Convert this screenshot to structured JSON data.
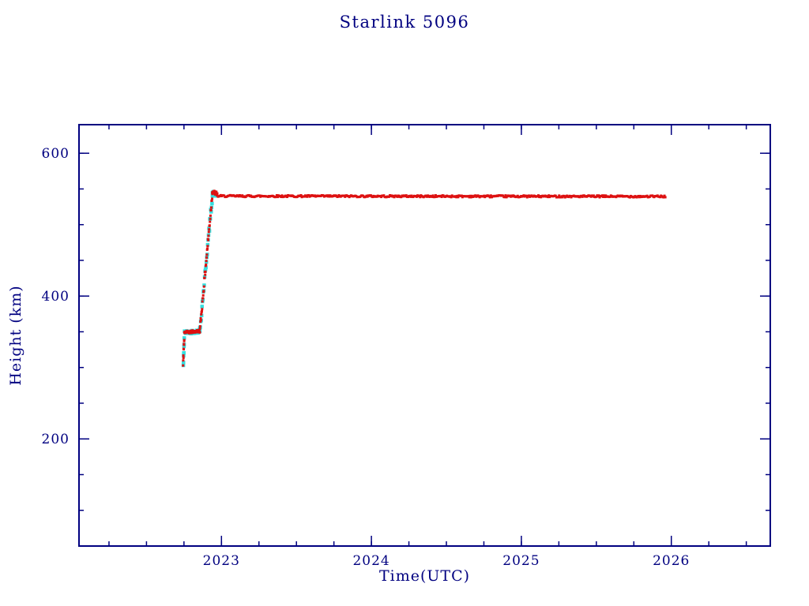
{
  "chart_data": {
    "type": "scatter",
    "title": "Starlink 5096",
    "xlabel": "Time(UTC)",
    "ylabel": "Height (km)",
    "xlim": [
      2022.05,
      2026.66
    ],
    "ylim": [
      50,
      640
    ],
    "x_major_ticks": [
      2023,
      2024,
      2025,
      2026
    ],
    "x_minor_step": 0.25,
    "y_major_ticks": [
      200,
      400,
      600
    ],
    "y_minor_step": 50,
    "grid": false,
    "legend": "none",
    "axis_color": "#000080",
    "text_color": "#000080",
    "background": "#ffffff",
    "series": [
      {
        "name": "height-track-cyan",
        "color": "#35dede",
        "marker_size": 4.5,
        "segments": [
          {
            "x0": 2022.746,
            "x1": 2022.752,
            "y0": 302,
            "y1": 340,
            "n": 8,
            "jitter": 5
          },
          {
            "x0": 2022.754,
            "x1": 2022.856,
            "y0": 349,
            "y1": 351,
            "n": 25,
            "jitter": 2.5
          },
          {
            "x0": 2022.856,
            "x1": 2022.94,
            "y0": 352,
            "y1": 542,
            "n": 30,
            "jitter": 6
          },
          {
            "x0": 2022.94,
            "x1": 2022.965,
            "y0": 545,
            "y1": 541,
            "n": 8,
            "jitter": 3
          }
        ]
      },
      {
        "name": "height-track-red",
        "color": "#dd1111",
        "marker_size": 3,
        "segments": [
          {
            "x0": 2022.744,
            "x1": 2022.752,
            "y0": 306,
            "y1": 340,
            "n": 10,
            "jitter": 5
          },
          {
            "x0": 2022.752,
            "x1": 2022.856,
            "y0": 349,
            "y1": 351,
            "n": 40,
            "jitter": 2
          },
          {
            "x0": 2022.856,
            "x1": 2022.938,
            "y0": 352,
            "y1": 540,
            "n": 45,
            "jitter": 5
          },
          {
            "x0": 2022.938,
            "x1": 2022.972,
            "y0": 546,
            "y1": 543,
            "n": 18,
            "jitter": 3
          },
          {
            "x0": 2022.972,
            "x1": 2025.96,
            "y0": 540,
            "y1": 539.5,
            "n": 520,
            "jitter": 1.3
          }
        ]
      }
    ]
  }
}
